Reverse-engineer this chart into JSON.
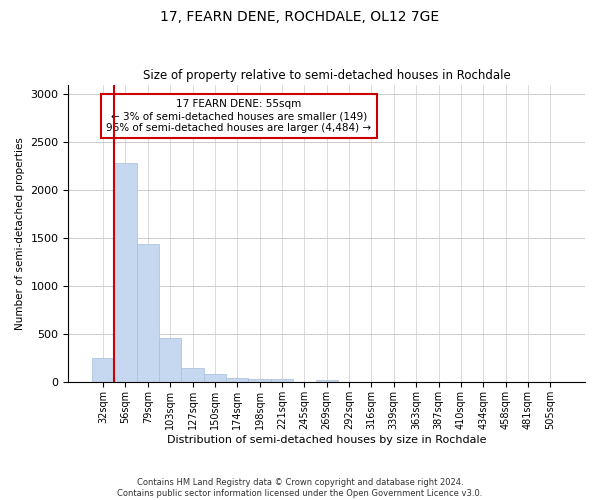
{
  "title": "17, FEARN DENE, ROCHDALE, OL12 7GE",
  "subtitle": "Size of property relative to semi-detached houses in Rochdale",
  "xlabel": "Distribution of semi-detached houses by size in Rochdale",
  "ylabel": "Number of semi-detached properties",
  "footer_line1": "Contains HM Land Registry data © Crown copyright and database right 2024.",
  "footer_line2": "Contains public sector information licensed under the Open Government Licence v3.0.",
  "annotation_title": "17 FEARN DENE: 55sqm",
  "annotation_line1": "← 3% of semi-detached houses are smaller (149)",
  "annotation_line2": "96% of semi-detached houses are larger (4,484) →",
  "property_sqm": 55,
  "bar_color": "#c5d8f0",
  "bar_edge_color": "#a8bdd8",
  "annotation_box_color": "#cc0000",
  "vline_color": "#cc0000",
  "grid_color": "#cccccc",
  "background_color": "#ffffff",
  "categories": [
    "32sqm",
    "56sqm",
    "79sqm",
    "103sqm",
    "127sqm",
    "150sqm",
    "174sqm",
    "198sqm",
    "221sqm",
    "245sqm",
    "269sqm",
    "292sqm",
    "316sqm",
    "339sqm",
    "363sqm",
    "387sqm",
    "410sqm",
    "434sqm",
    "458sqm",
    "481sqm",
    "505sqm"
  ],
  "values": [
    250,
    2280,
    1440,
    460,
    155,
    85,
    50,
    40,
    35,
    0,
    30,
    0,
    0,
    0,
    0,
    0,
    0,
    0,
    0,
    0,
    0
  ],
  "ylim": [
    0,
    3100
  ],
  "yticks": [
    0,
    500,
    1000,
    1500,
    2000,
    2500,
    3000
  ],
  "vline_index": 0.5
}
